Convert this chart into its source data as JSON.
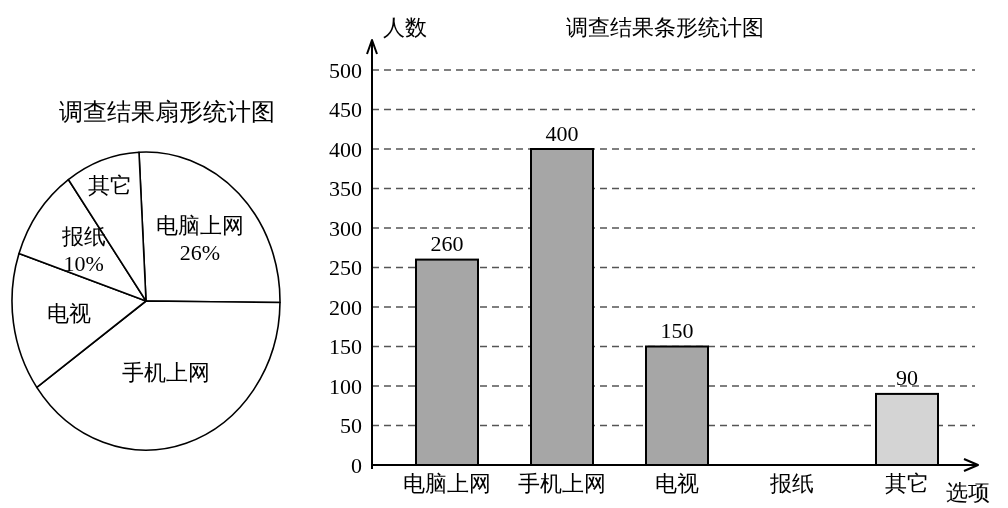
{
  "chart_data": [
    {
      "type": "pie",
      "title": "调查结果扇形统计图",
      "categories": [
        "电脑上网",
        "手机上网",
        "电视",
        "报纸",
        "其它"
      ],
      "values": [
        26,
        40,
        15,
        10,
        9
      ],
      "colors": [
        "#ffffff",
        "#ffffff",
        "#ffffff",
        "#ffffff",
        "#ffffff"
      ],
      "value_labels": [
        "26%",
        null,
        null,
        "10%",
        null
      ]
    },
    {
      "type": "bar",
      "title": "调查结果条形统计图",
      "ylabel": "人数",
      "xlabel": "选项",
      "categories": [
        "电脑上网",
        "手机上网",
        "电视",
        "报纸",
        "其它"
      ],
      "values": [
        260,
        400,
        150,
        null,
        90
      ],
      "colors": [
        "#a6a6a6",
        "#a6a6a6",
        "#a6a6a6",
        null,
        "#d4d4d4"
      ],
      "ylim": [
        0,
        500
      ],
      "yticks": [
        0,
        50,
        100,
        150,
        200,
        250,
        300,
        350,
        400,
        450,
        500
      ],
      "grid": "y",
      "data_labels": true
    }
  ]
}
